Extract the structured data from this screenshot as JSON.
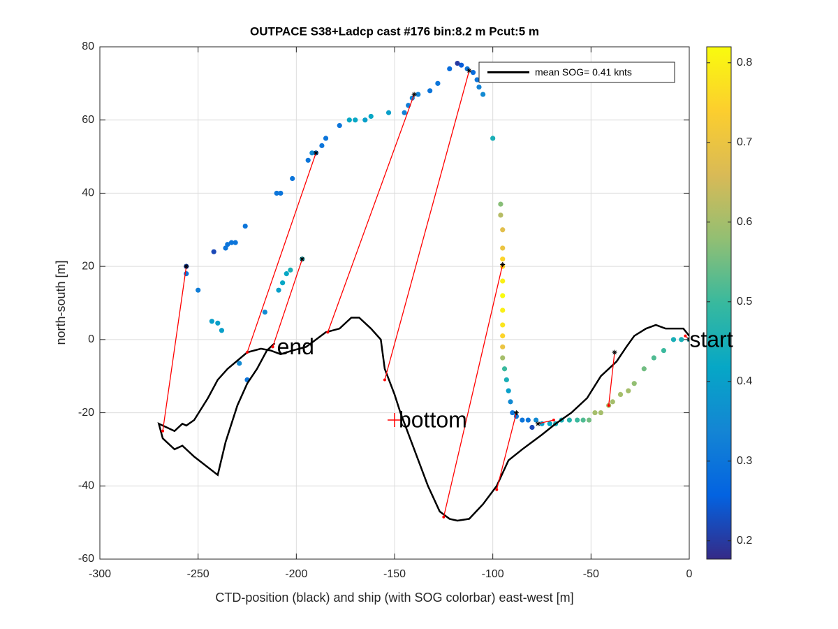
{
  "chart_data": {
    "type": "scatter",
    "title": "OUTPACE S38+Ladcp cast #176 bin:8.2 m  Pcut:5 m",
    "xlabel": "CTD-position (black) and ship (with SOG colorbar) east-west [m]",
    "ylabel": "north-south [m]",
    "xlim": [
      -300,
      0
    ],
    "ylim": [
      -60,
      80
    ],
    "xticks": [
      -300,
      -250,
      -200,
      -150,
      -100,
      -50,
      0
    ],
    "yticks": [
      -60,
      -40,
      -20,
      0,
      20,
      40,
      60,
      80
    ],
    "grid": true,
    "legend": "northeast",
    "series": [
      {
        "name": "mean SOG=  0.41 knts",
        "color": "#000000",
        "x": [
          0,
          -3,
          -7,
          -12,
          -17,
          -22,
          -28,
          -32,
          -37,
          -45,
          -52,
          -60,
          -68,
          -75,
          -85,
          -92,
          -98,
          -105,
          -112,
          -118,
          -122,
          -127,
          -133,
          -140,
          -147,
          -150,
          -155,
          -157,
          -162,
          -168,
          -172,
          -178,
          -185,
          -195,
          -202,
          -208,
          -213,
          -218,
          -225,
          -235,
          -240,
          -245,
          -252,
          -256,
          -258,
          -262,
          -266,
          -270,
          -268,
          -262,
          -258,
          -252,
          -240,
          -236,
          -230,
          -225,
          -220,
          -215,
          -211
        ],
        "y": [
          1,
          3,
          3,
          3,
          4,
          3,
          1,
          -2,
          -6,
          -10,
          -16,
          -20,
          -23,
          -26,
          -30,
          -33,
          -40,
          -45,
          -49,
          -49.5,
          -49,
          -47,
          -40,
          -30,
          -20,
          -15,
          -8,
          0,
          3,
          6,
          6,
          3,
          2,
          -2,
          -3,
          -4,
          -3,
          -2.5,
          -3.5,
          -8,
          -11,
          -16,
          -22,
          -23.5,
          -23,
          -25,
          -24,
          -23,
          -27,
          -30,
          -29,
          -32,
          -37,
          -28,
          -18,
          -12,
          -8,
          -3,
          -1
        ]
      }
    ],
    "ship": {
      "x": [
        0,
        -4,
        -8,
        -13,
        -18,
        -23,
        -28,
        -31,
        -35,
        -39,
        -41,
        -45,
        -48,
        -51,
        -54,
        -57,
        -61,
        -65,
        -68,
        -71,
        -75,
        -78,
        -80,
        -82,
        -85,
        -88,
        -90,
        -91,
        -92,
        -93,
        -94,
        -95,
        -95,
        -95,
        -95,
        -95,
        -95,
        -95,
        -95,
        -95,
        -95,
        -95,
        -96,
        -96,
        -100,
        -105,
        -107,
        -108,
        -110,
        -113,
        -116,
        -118,
        -122,
        -128,
        -132,
        -138,
        -141,
        -143,
        -145,
        -153,
        -162,
        -165,
        -170,
        -173,
        -178,
        -185,
        -187,
        -190,
        -192,
        -194,
        -202,
        -208,
        -210,
        -226,
        -231,
        -233,
        -235,
        -236,
        -242,
        -256,
        -256,
        -250,
        -216,
        -209,
        -207,
        -205,
        -203,
        -197,
        -243,
        -240,
        -238,
        -229,
        -225
      ],
      "y": [
        0,
        0,
        0,
        -3,
        -5,
        -8,
        -12,
        -14,
        -15,
        -17,
        -18,
        -20,
        -20,
        -22,
        -22,
        -22,
        -22,
        -22,
        -23,
        -23,
        -23,
        -22,
        -24,
        -22,
        -22,
        -21,
        -20,
        -17,
        -14,
        -11,
        -8,
        -5,
        -2,
        1,
        4,
        8,
        12,
        16,
        20,
        22,
        25,
        30,
        34,
        37,
        55,
        67,
        69,
        71,
        73,
        74,
        75,
        75.5,
        74,
        70,
        68,
        67,
        66,
        64,
        62,
        62,
        61,
        60,
        60,
        60,
        58.5,
        55,
        53,
        51,
        51,
        49,
        44,
        40,
        40,
        31,
        26.5,
        26.5,
        26,
        25,
        24,
        20,
        18,
        13.5,
        7.5,
        13.5,
        15.5,
        18,
        19,
        22,
        5,
        4.5,
        2.5,
        -6.5,
        -11
      ],
      "sog": [
        0.45,
        0.45,
        0.45,
        0.5,
        0.52,
        0.55,
        0.58,
        0.6,
        0.6,
        0.6,
        0.6,
        0.6,
        0.6,
        0.55,
        0.52,
        0.5,
        0.47,
        0.45,
        0.45,
        0.42,
        0.4,
        0.35,
        0.22,
        0.3,
        0.3,
        0.3,
        0.3,
        0.35,
        0.4,
        0.45,
        0.5,
        0.6,
        0.7,
        0.75,
        0.78,
        0.8,
        0.82,
        0.8,
        0.76,
        0.75,
        0.7,
        0.68,
        0.62,
        0.57,
        0.45,
        0.35,
        0.33,
        0.3,
        0.28,
        0.3,
        0.25,
        0.2,
        0.28,
        0.3,
        0.3,
        0.33,
        0.33,
        0.32,
        0.33,
        0.4,
        0.42,
        0.4,
        0.42,
        0.42,
        0.3,
        0.3,
        0.3,
        0.3,
        0.35,
        0.3,
        0.3,
        0.3,
        0.3,
        0.3,
        0.3,
        0.3,
        0.3,
        0.3,
        0.22,
        0.22,
        0.3,
        0.32,
        0.35,
        0.4,
        0.42,
        0.42,
        0.45,
        0.45,
        0.4,
        0.4,
        0.4,
        0.35,
        0.3
      ]
    },
    "links": {
      "color": "#ff0000",
      "x1": [
        -268,
        -225,
        -212,
        -184,
        -155,
        -125,
        -98,
        -69,
        -41,
        -2
      ],
      "y1": [
        -25,
        -3.5,
        -2,
        2,
        -11,
        -48.5,
        -41,
        -22,
        -18,
        1
      ],
      "x2": [
        -256,
        -190,
        -197,
        -140,
        -112,
        -95,
        -88,
        -77,
        -38,
        0
      ],
      "y2": [
        20,
        51,
        22,
        67,
        73.5,
        20.5,
        -20,
        -23,
        -3.5,
        0
      ]
    },
    "annotations": [
      {
        "text": "start",
        "x": -2,
        "y": 0
      },
      {
        "text": "end",
        "x": -212,
        "y": -2
      },
      {
        "text": "bottom",
        "x": -150,
        "y": -22,
        "marker": "+"
      }
    ],
    "colorbar": {
      "colormap": "parula",
      "clim": [
        0.177,
        0.82
      ],
      "ticks": [
        0.2,
        0.3,
        0.4,
        0.5,
        0.6,
        0.7,
        0.8
      ]
    }
  }
}
